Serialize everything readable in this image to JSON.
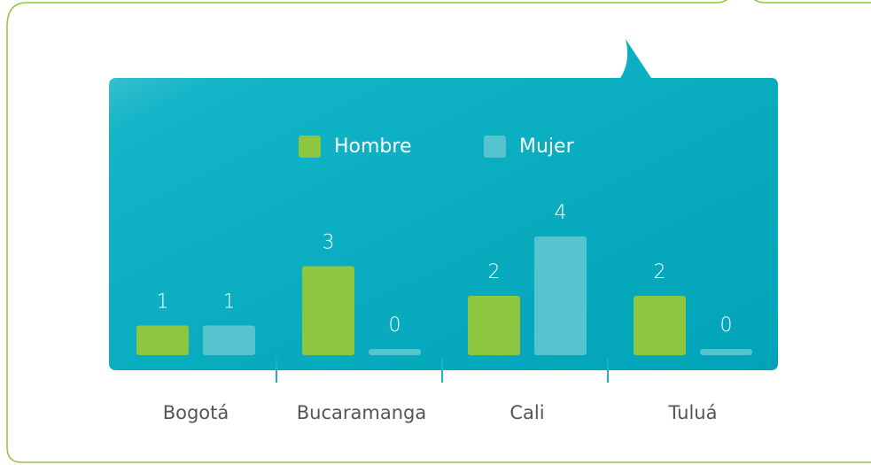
{
  "chart_data": {
    "type": "bar",
    "categories": [
      "Bogotá",
      "Bucaramanga",
      "Cali",
      "Tuluá"
    ],
    "series": [
      {
        "name": "Hombre",
        "color": "#8dc63f",
        "values": [
          1,
          3,
          2,
          2
        ]
      },
      {
        "name": "Mujer",
        "color": "#56c4cf",
        "values": [
          1,
          0,
          4,
          0
        ]
      }
    ],
    "legend": "top"
  }
}
